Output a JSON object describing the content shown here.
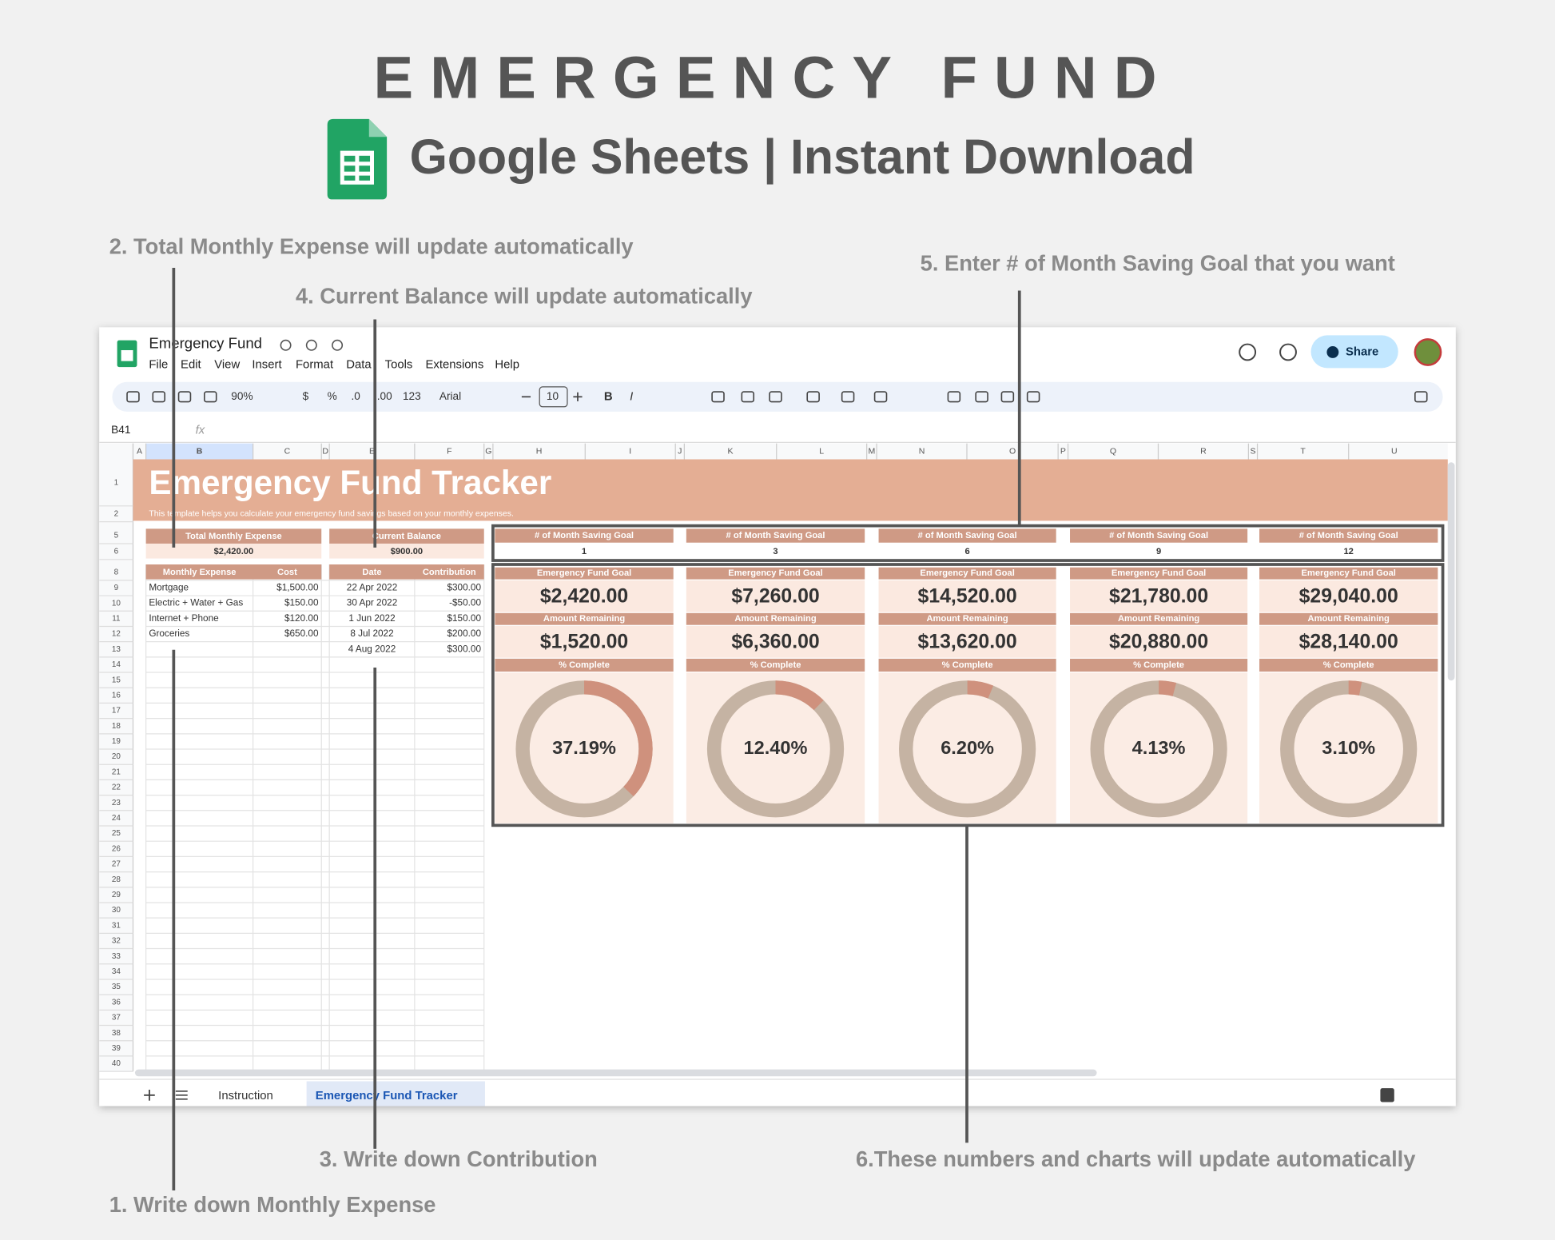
{
  "header": {
    "title": "EMERGENCY FUND",
    "subtitle": "Google Sheets | Instant Download"
  },
  "annotations": [
    "2. Total Monthly Expense will update automatically",
    "4. Current Balance will update automatically",
    "5. Enter # of Month Saving Goal that you want",
    "3. Write down Contribution",
    "6.These numbers and charts will update automatically",
    "1. Write down Monthly Expense"
  ],
  "app": {
    "doc_title": "Emergency Fund",
    "menu": [
      "File",
      "Edit",
      "View",
      "Insert",
      "Format",
      "Data",
      "Tools",
      "Extensions",
      "Help"
    ],
    "share": "Share",
    "toolbar": [
      "90%",
      "$",
      "%",
      ".0",
      ".00",
      "123",
      "Arial",
      "10",
      "B",
      "I"
    ],
    "cell_ref": "B41",
    "formula_label": "fx",
    "sheet_tabs": [
      "Instruction",
      "Emergency Fund Tracker"
    ]
  },
  "columns": [
    "A",
    "B",
    "C",
    "D",
    "E",
    "F",
    "G",
    "H",
    "I",
    "J",
    "K",
    "L",
    "M",
    "N",
    "O",
    "P",
    "Q",
    "R",
    "S",
    "T",
    "U"
  ],
  "rows": [
    1,
    2,
    5,
    6,
    8,
    9,
    10,
    11,
    12,
    13,
    14,
    15,
    16,
    17,
    18,
    19,
    20,
    21,
    22,
    23,
    24,
    25,
    26,
    27,
    28,
    29,
    30,
    31,
    32,
    33,
    34,
    35,
    36,
    37,
    38,
    39,
    40
  ],
  "sheet": {
    "title": "Emergency Fund Tracker",
    "description": "This template helps you calculate your emergency fund savings based on your monthly expenses.",
    "total_expense": {
      "label": "Total Monthly Expense",
      "value": "$2,420.00"
    },
    "current_balance": {
      "label": "Current Balance",
      "value": "$900.00"
    },
    "expenses": {
      "headers": [
        "Monthly Expense",
        "Cost"
      ],
      "rows": [
        [
          "Mortgage",
          "$1,500.00"
        ],
        [
          "Electric + Water + Gas",
          "$150.00"
        ],
        [
          "Internet + Phone",
          "$120.00"
        ],
        [
          "Groceries",
          "$650.00"
        ]
      ]
    },
    "contributions": {
      "headers": [
        "Date",
        "Contribution"
      ],
      "rows": [
        [
          "22 Apr 2022",
          "$300.00"
        ],
        [
          "30 Apr 2022",
          "-$50.00"
        ],
        [
          "1 Jun 2022",
          "$150.00"
        ],
        [
          "8 Jul 2022",
          "$200.00"
        ],
        [
          "4 Aug 2022",
          "$300.00"
        ]
      ]
    },
    "goal_labels": {
      "months": "# of Month Saving Goal",
      "goal": "Emergency Fund Goal",
      "remaining": "Amount Remaining",
      "complete": "% Complete"
    },
    "goals": [
      {
        "months": 1,
        "goal": "$2,420.00",
        "remaining": "$1,520.00",
        "percent": {
          "value": 37.19,
          "label": "37.19%"
        }
      },
      {
        "months": 3,
        "goal": "$7,260.00",
        "remaining": "$6,360.00",
        "percent": {
          "value": 12.4,
          "label": "12.40%"
        }
      },
      {
        "months": 6,
        "goal": "$14,520.00",
        "remaining": "$13,620.00",
        "percent": {
          "value": 6.2,
          "label": "6.20%"
        }
      },
      {
        "months": 9,
        "goal": "$21,780.00",
        "remaining": "$20,880.00",
        "percent": {
          "value": 4.13,
          "label": "4.13%"
        }
      },
      {
        "months": 12,
        "goal": "$29,040.00",
        "remaining": "$28,140.00",
        "percent": {
          "value": 3.1,
          "label": "3.10%"
        }
      }
    ]
  }
}
